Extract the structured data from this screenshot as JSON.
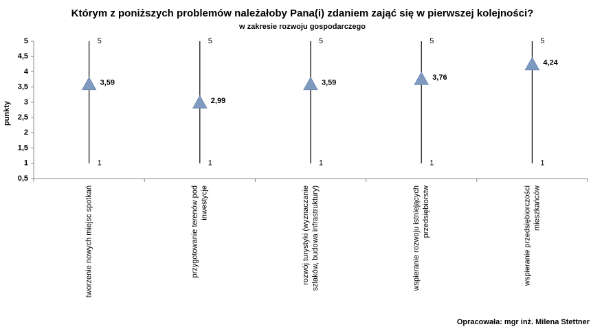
{
  "chart_data": {
    "type": "hilo",
    "title": "Którym z poniższych problemów należałoby Pana(i) zdaniem zająć się w pierwszej kolejności?",
    "subtitle": "w zakresie rozwoju gospodarczego",
    "y_label": "punkty",
    "footer": "Opracowała: mgr inż. Milena Stettner",
    "categories": [
      [
        "tworzenie nowych miejsc spotkań"
      ],
      [
        "przygotowanie terenów pod",
        "inwestycje"
      ],
      [
        "rozwój turystyki (wyznaczanie",
        "szlaków, budowa infrastruktury)"
      ],
      [
        "wspieranie rozwoju istniejących",
        "przedsiębiorstw"
      ],
      [
        "wspieranie przedsiębiorczości",
        "mieszkańców"
      ]
    ],
    "high": [
      5,
      5,
      5,
      5,
      5
    ],
    "low": [
      1,
      1,
      1,
      1,
      1
    ],
    "values": [
      3.59,
      2.99,
      3.59,
      3.76,
      4.24
    ],
    "value_labels": [
      "3,59",
      "2,99",
      "3,59",
      "3,76",
      "4,24"
    ],
    "color": "#7f9ac0",
    "ylim": [
      0.5,
      5
    ],
    "yticks": [
      {
        "value": 0.5,
        "label": "0,5"
      },
      1,
      {
        "value": 1.5,
        "label": "1,5"
      },
      2,
      {
        "value": 2.5,
        "label": "2,5"
      },
      3,
      {
        "value": 3.5,
        "label": "3,5"
      },
      4,
      {
        "value": 4.5,
        "label": "4,5"
      },
      5
    ]
  }
}
